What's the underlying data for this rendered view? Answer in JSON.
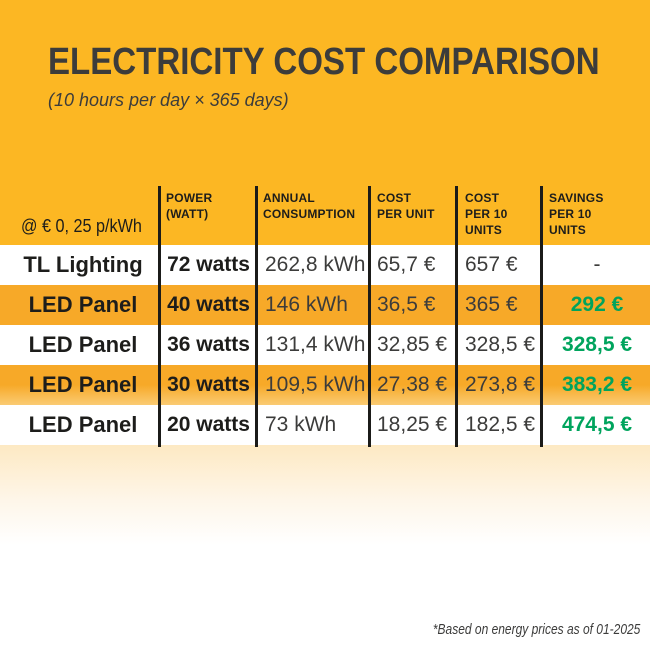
{
  "chart_data": {
    "type": "table",
    "title": "ELECTRICITY COST COMPARISON",
    "subtitle": "(10 hours per day × 365 days)",
    "rate_note": "@ € 0, 25 p/kWh",
    "columns": [
      "POWER (WATT)",
      "ANNUAL CONSUMPTION",
      "COST PER UNIT",
      "COST PER 10 UNITS",
      "SAVINGS PER 10 UNITS"
    ],
    "rows": [
      {
        "product": "TL Lighting",
        "power": "72 watts",
        "annual_consumption": "262,8 kWh",
        "cost_per_unit": "65,7 €",
        "cost_per_10_units": "657 €",
        "savings_per_10_units": "-"
      },
      {
        "product": "LED Panel",
        "power": "40 watts",
        "annual_consumption": "146 kWh",
        "cost_per_unit": "36,5 €",
        "cost_per_10_units": "365 €",
        "savings_per_10_units": "292 €"
      },
      {
        "product": "LED Panel",
        "power": "36 watts",
        "annual_consumption": "131,4 kWh",
        "cost_per_unit": "32,85 €",
        "cost_per_10_units": "328,5 €",
        "savings_per_10_units": "328,5 €"
      },
      {
        "product": "LED Panel",
        "power": "30 watts",
        "annual_consumption": "109,5 kWh",
        "cost_per_unit": "27,38 €",
        "cost_per_10_units": "273,8 €",
        "savings_per_10_units": "383,2 €"
      },
      {
        "product": "LED Panel",
        "power": "20 watts",
        "annual_consumption": "73 kWh",
        "cost_per_unit": "18,25 €",
        "cost_per_10_units": "182,5 €",
        "savings_per_10_units": "474,5 €"
      }
    ],
    "footnote": "*Based on energy prices as of 01-2025",
    "colors": {
      "background_orange": "#FCB723",
      "row_highlight_orange": "#F7A928",
      "row_white": "#FFFFFF",
      "savings_green": "#00A45D",
      "text_dark": "#1D1D1B"
    }
  },
  "headers": [
    [
      "POWER",
      "(WATT)"
    ],
    [
      "ANNUAL",
      "CONSUMPTION"
    ],
    [
      "COST",
      "PER UNIT"
    ],
    [
      "COST",
      "PER 10",
      "UNITS"
    ],
    [
      "SAVINGS",
      "PER 10",
      "UNITS"
    ]
  ]
}
